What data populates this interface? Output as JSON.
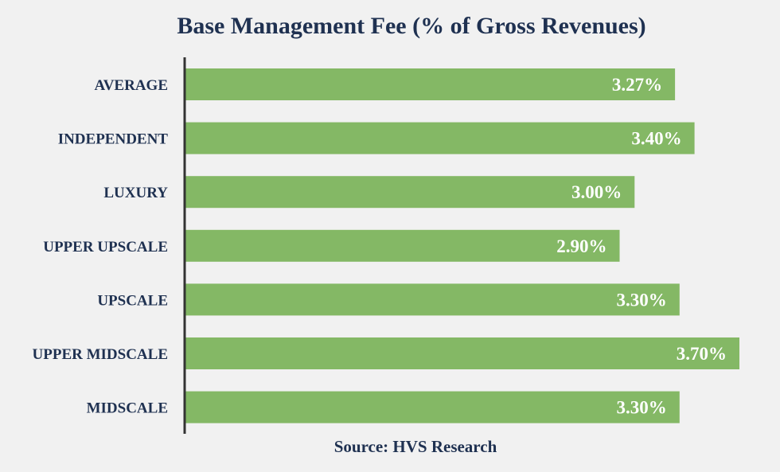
{
  "chart_data": {
    "type": "bar",
    "orientation": "horizontal",
    "title": "Base Management Fee (% of Gross Revenues)",
    "source": "Source: HVS Research",
    "categories": [
      "AVERAGE",
      "INDEPENDENT",
      "LUXURY",
      "UPPER UPSCALE",
      "UPSCALE",
      "UPPER MIDSCALE",
      "MIDSCALE"
    ],
    "values": [
      3.27,
      3.4,
      3.0,
      2.9,
      3.3,
      3.7,
      3.3
    ],
    "value_labels": [
      "3.27%",
      "3.40%",
      "3.00%",
      "2.90%",
      "3.30%",
      "3.70%",
      "3.30%"
    ],
    "xlim": [
      0,
      3.7
    ],
    "colors": {
      "bar": "#84b865",
      "axis": "#333333",
      "text": "#1f3151",
      "value_text": "#ffffff",
      "background": "#f1f1f1"
    },
    "grid": false,
    "legend": "none"
  }
}
